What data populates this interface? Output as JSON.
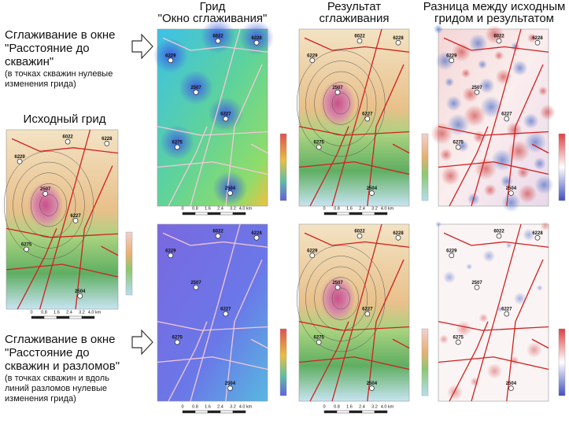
{
  "left_top": [
    "Сглаживание в окне",
    "\"Расстояние до",
    "скважин\""
  ],
  "left_top_note": [
    "(в точках скважин нулевые",
    "изменения грида)"
  ],
  "source_title": "Исходный грид",
  "left_bottom": [
    "Сглаживание в окне",
    "\"Расстояние до",
    "скважин и разломов\""
  ],
  "left_bottom_note": [
    "(в точках скважин и вдоль",
    "линий разломов нулевые",
    "изменения грида)"
  ],
  "columns": [
    {
      "title": [
        "Грид",
        "\"Окно сглаживания\""
      ]
    },
    {
      "title": [
        "Результат",
        "сглаживания"
      ]
    },
    {
      "title": [
        "Разница между исходным",
        "гридом и результатом"
      ]
    }
  ],
  "wells": [
    "6022",
    "6228",
    "6229",
    "2507",
    "6227",
    "6275",
    "2504"
  ],
  "scale": [
    "0",
    "0.8",
    "1.6",
    "2.4",
    "3.2",
    "4.0 km"
  ]
}
